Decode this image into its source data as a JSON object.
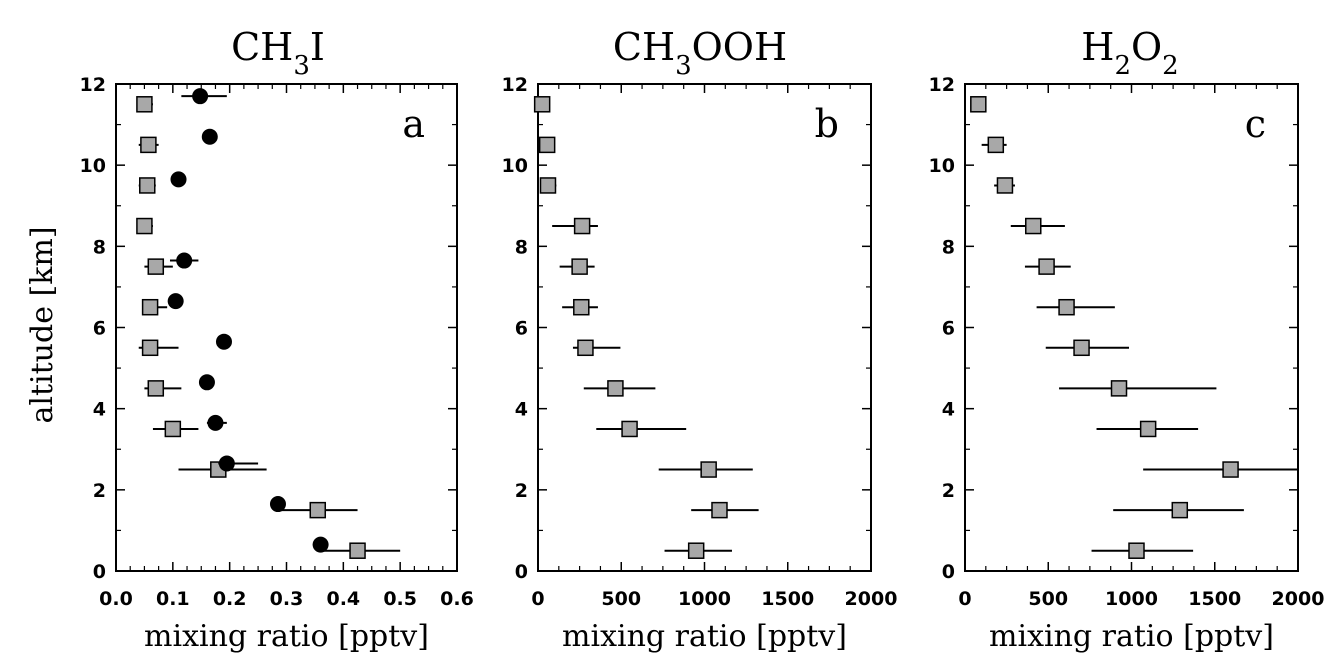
{
  "figure": {
    "ylabel": "altitude [km]"
  },
  "chart_data": [
    {
      "type": "scatter",
      "title": {
        "main": "CH",
        "sub1": "3",
        "end": "I"
      },
      "panel_label": "a",
      "xlabel": "mixing ratio [pptv]",
      "ylabel": "altitude [km]",
      "xlim": [
        0,
        0.6
      ],
      "ylim": [
        0,
        12
      ],
      "xticks": [
        "0.0",
        "0.1",
        "0.2",
        "0.3",
        "0.4",
        "0.5",
        "0.6"
      ],
      "xtick_values": [
        0,
        0.1,
        0.2,
        0.3,
        0.4,
        0.5,
        0.6
      ],
      "yticks": [
        "0",
        "2",
        "4",
        "6",
        "8",
        "10",
        "12"
      ],
      "ytick_values": [
        0,
        2,
        4,
        6,
        8,
        10,
        12
      ],
      "series": [
        {
          "marker": "square",
          "color": "#a8a8a8",
          "points": [
            {
              "x": 0.05,
              "y": 11.5,
              "xerr": [
                0.04,
                0.065
              ]
            },
            {
              "x": 0.057,
              "y": 10.5,
              "xerr": [
                0.04,
                0.075
              ]
            },
            {
              "x": 0.055,
              "y": 9.5,
              "xerr": [
                0.04,
                0.07
              ]
            },
            {
              "x": 0.05,
              "y": 8.5,
              "xerr": [
                0.04,
                0.065
              ]
            },
            {
              "x": 0.07,
              "y": 7.5,
              "xerr": [
                0.05,
                0.1
              ]
            },
            {
              "x": 0.06,
              "y": 6.5,
              "xerr": [
                0.05,
                0.09
              ]
            },
            {
              "x": 0.06,
              "y": 5.5,
              "xerr": [
                0.04,
                0.11
              ]
            },
            {
              "x": 0.07,
              "y": 4.5,
              "xerr": [
                0.05,
                0.115
              ]
            },
            {
              "x": 0.1,
              "y": 3.5,
              "xerr": [
                0.065,
                0.145
              ]
            },
            {
              "x": 0.18,
              "y": 2.5,
              "xerr": [
                0.11,
                0.265
              ]
            },
            {
              "x": 0.355,
              "y": 1.5,
              "xerr": [
                0.285,
                0.425
              ]
            },
            {
              "x": 0.425,
              "y": 0.5,
              "xerr": [
                0.355,
                0.5
              ]
            }
          ]
        },
        {
          "marker": "circle",
          "color": "#000000",
          "points": [
            {
              "x": 0.148,
              "y": 11.7,
              "xerr": [
                0.115,
                0.195
              ]
            },
            {
              "x": 0.165,
              "y": 10.7
            },
            {
              "x": 0.11,
              "y": 9.65
            },
            {
              "x": 0.12,
              "y": 7.65,
              "xerr": [
                0.095,
                0.145
              ]
            },
            {
              "x": 0.105,
              "y": 6.65
            },
            {
              "x": 0.19,
              "y": 5.65
            },
            {
              "x": 0.16,
              "y": 4.65
            },
            {
              "x": 0.175,
              "y": 3.65,
              "xerr": [
                0.16,
                0.195
              ]
            },
            {
              "x": 0.195,
              "y": 2.65,
              "xerr": [
                0.18,
                0.25
              ]
            },
            {
              "x": 0.285,
              "y": 1.65
            },
            {
              "x": 0.36,
              "y": 0.65
            }
          ]
        }
      ]
    },
    {
      "type": "scatter",
      "title": {
        "main": "CH",
        "sub1": "3",
        "end": "OOH"
      },
      "panel_label": "b",
      "xlabel": "mixing ratio [pptv]",
      "ylabel": "altitude [km]",
      "xlim": [
        0,
        2000
      ],
      "ylim": [
        0,
        12
      ],
      "xticks": [
        "0",
        "500",
        "1000",
        "1500",
        "2000"
      ],
      "xtick_values": [
        0,
        500,
        1000,
        1500,
        2000
      ],
      "yticks": [
        "0",
        "2",
        "4",
        "6",
        "8",
        "10",
        "12"
      ],
      "ytick_values": [
        0,
        2,
        4,
        6,
        8,
        10,
        12
      ],
      "series": [
        {
          "marker": "square",
          "color": "#a8a8a8",
          "points": [
            {
              "x": 25,
              "y": 11.5,
              "xerr": [
                0,
                70
              ]
            },
            {
              "x": 55,
              "y": 10.5,
              "xerr": [
                20,
                85
              ]
            },
            {
              "x": 60,
              "y": 9.5,
              "xerr": [
                15,
                110
              ]
            },
            {
              "x": 265,
              "y": 8.5,
              "xerr": [
                85,
                360
              ]
            },
            {
              "x": 250,
              "y": 7.5,
              "xerr": [
                130,
                340
              ]
            },
            {
              "x": 260,
              "y": 6.5,
              "xerr": [
                145,
                360
              ]
            },
            {
              "x": 285,
              "y": 5.5,
              "xerr": [
                210,
                495
              ]
            },
            {
              "x": 465,
              "y": 4.5,
              "xerr": [
                275,
                705
              ]
            },
            {
              "x": 550,
              "y": 3.5,
              "xerr": [
                350,
                890
              ]
            },
            {
              "x": 1025,
              "y": 2.5,
              "xerr": [
                725,
                1290
              ]
            },
            {
              "x": 1090,
              "y": 1.5,
              "xerr": [
                920,
                1325
              ]
            },
            {
              "x": 950,
              "y": 0.5,
              "xerr": [
                760,
                1165
              ]
            }
          ]
        }
      ]
    },
    {
      "type": "scatter",
      "title": {
        "main": "H",
        "sub1": "2",
        "mid": "O",
        "sub2": "2"
      },
      "panel_label": "c",
      "xlabel": "mixing ratio [pptv]",
      "ylabel": "altitude [km]",
      "xlim": [
        0,
        2000
      ],
      "ylim": [
        0,
        12
      ],
      "xticks": [
        "0",
        "500",
        "1000",
        "1500",
        "2000"
      ],
      "xtick_values": [
        0,
        500,
        1000,
        1500,
        2000
      ],
      "yticks": [
        "0",
        "2",
        "4",
        "6",
        "8",
        "10",
        "12"
      ],
      "ytick_values": [
        0,
        2,
        4,
        6,
        8,
        10,
        12
      ],
      "series": [
        {
          "marker": "square",
          "color": "#a8a8a8",
          "points": [
            {
              "x": 80,
              "y": 11.5,
              "xerr": [
                40,
                125
              ]
            },
            {
              "x": 185,
              "y": 10.5,
              "xerr": [
                100,
                250
              ]
            },
            {
              "x": 240,
              "y": 9.5,
              "xerr": [
                175,
                300
              ]
            },
            {
              "x": 410,
              "y": 8.5,
              "xerr": [
                275,
                600
              ]
            },
            {
              "x": 490,
              "y": 7.5,
              "xerr": [
                360,
                635
              ]
            },
            {
              "x": 610,
              "y": 6.5,
              "xerr": [
                430,
                900
              ]
            },
            {
              "x": 700,
              "y": 5.5,
              "xerr": [
                485,
                985
              ]
            },
            {
              "x": 925,
              "y": 4.5,
              "xerr": [
                565,
                1510
              ]
            },
            {
              "x": 1100,
              "y": 3.5,
              "xerr": [
                790,
                1400
              ]
            },
            {
              "x": 1595,
              "y": 2.5,
              "xerr": [
                1070,
                2000
              ]
            },
            {
              "x": 1290,
              "y": 1.5,
              "xerr": [
                890,
                1675
              ]
            },
            {
              "x": 1030,
              "y": 0.5,
              "xerr": [
                760,
                1370
              ]
            }
          ]
        }
      ]
    }
  ]
}
